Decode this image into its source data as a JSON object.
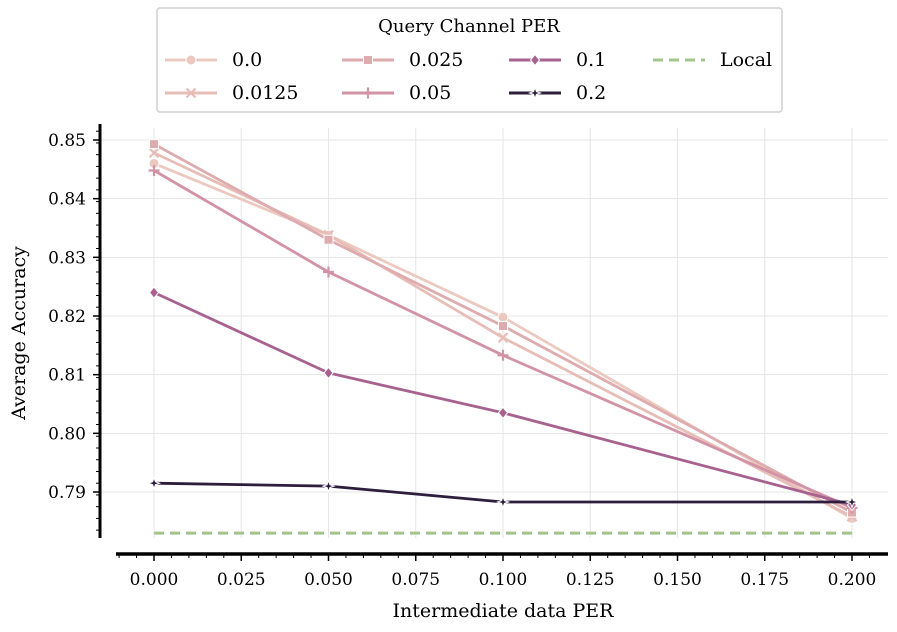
{
  "chart_data": {
    "type": "line",
    "title": "",
    "xlabel": "Intermediate data PER",
    "ylabel": "Average Accuracy",
    "xlim": [
      -0.014,
      0.2
    ],
    "ylim": [
      0.7813,
      0.8515
    ],
    "grid": true,
    "x": [
      0.0,
      0.05,
      0.1,
      0.2
    ],
    "x_ticks": [
      "0.000",
      "0.025",
      "0.050",
      "0.075",
      "0.100",
      "0.125",
      "0.150",
      "0.175",
      "0.200"
    ],
    "x_tick_values": [
      0.0,
      0.025,
      0.05,
      0.075,
      0.1,
      0.125,
      0.15,
      0.175,
      0.2
    ],
    "y_ticks": [
      "0.79",
      "0.80",
      "0.81",
      "0.82",
      "0.83",
      "0.84",
      "0.85"
    ],
    "y_tick_values": [
      0.79,
      0.8,
      0.81,
      0.82,
      0.83,
      0.84,
      0.85
    ],
    "legend": {
      "title": "Query Channel PER",
      "placement": "top-center, outside plot"
    },
    "series": [
      {
        "name": "0.0",
        "marker": "circle",
        "color": "#ecc9c0",
        "values": [
          0.846,
          0.8338,
          0.8198,
          0.7855
        ]
      },
      {
        "name": "0.0125",
        "marker": "x",
        "color": "#e7bdb8",
        "values": [
          0.8478,
          0.8338,
          0.8163,
          0.7858
        ]
      },
      {
        "name": "0.025",
        "marker": "square",
        "color": "#deabae",
        "values": [
          0.8493,
          0.833,
          0.8183,
          0.7865
        ]
      },
      {
        "name": "0.05",
        "marker": "plus",
        "color": "#d293a6",
        "values": [
          0.8448,
          0.8275,
          0.8133,
          0.7873
        ]
      },
      {
        "name": "0.1",
        "marker": "diamond",
        "color": "#a7628f",
        "values": [
          0.824,
          0.8103,
          0.8035,
          0.7878
        ]
      },
      {
        "name": "0.2",
        "marker": "star",
        "color": "#2d1e3e",
        "values": [
          0.7915,
          0.791,
          0.7883,
          0.7883
        ]
      },
      {
        "name": "Local",
        "marker": "none",
        "dashed": true,
        "color": "#a3c48c",
        "values": [
          0.783,
          0.783,
          0.783,
          0.783
        ]
      }
    ]
  }
}
